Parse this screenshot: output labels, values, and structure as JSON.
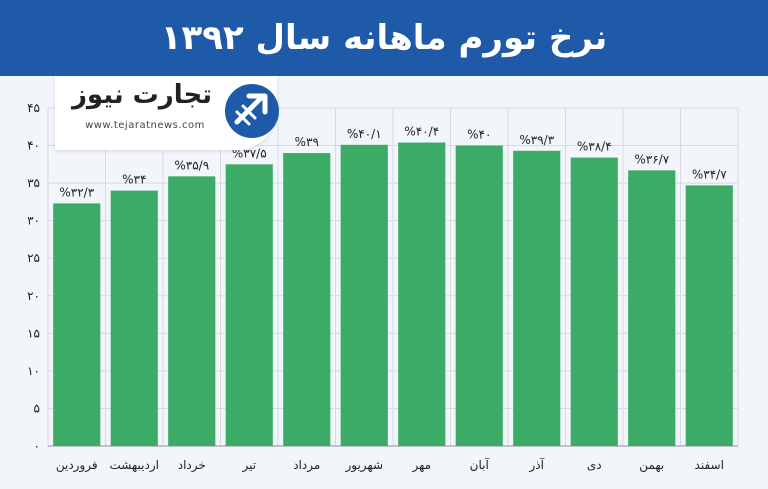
{
  "header": {
    "title": "نرخ تورم ماهانه سال ۱۳۹۲"
  },
  "logo": {
    "brand": "تجارت نیوز",
    "url": "www.tejaratnews.com"
  },
  "colors": {
    "header_bg": "#1f5aa8",
    "bar": "#3bab66",
    "grid": "#d6dbe2",
    "text": "#222222"
  },
  "chart_data": {
    "type": "bar",
    "title": "نرخ تورم ماهانه سال ۱۳۹۲",
    "xlabel": "",
    "ylabel": "",
    "ylim": [
      0,
      45
    ],
    "grid": true,
    "yticks": [
      0,
      5,
      10,
      15,
      20,
      25,
      30,
      35,
      40,
      45
    ],
    "ytick_labels": [
      "۰",
      "۵",
      "۱۰",
      "۱۵",
      "۲۰",
      "۲۵",
      "۳۰",
      "۳۵",
      "۴۰",
      "۴۵"
    ],
    "categories": [
      "فروردین",
      "اردیبهشت",
      "خرداد",
      "تیر",
      "مرداد",
      "شهریور",
      "مهر",
      "آبان",
      "آذر",
      "دی",
      "بهمن",
      "اسفند"
    ],
    "values": [
      32.3,
      34,
      35.9,
      37.5,
      39,
      40.1,
      40.4,
      40,
      39.3,
      38.4,
      36.7,
      34.7
    ],
    "value_labels": [
      "%۳۲/۳",
      "%۳۴",
      "%۳۵/۹",
      "%۳۷/۵",
      "%۳۹",
      "%۴۰/۱",
      "%۴۰/۴",
      "%۴۰",
      "%۳۹/۳",
      "%۳۸/۴",
      "%۳۶/۷",
      "%۳۴/۷"
    ]
  }
}
